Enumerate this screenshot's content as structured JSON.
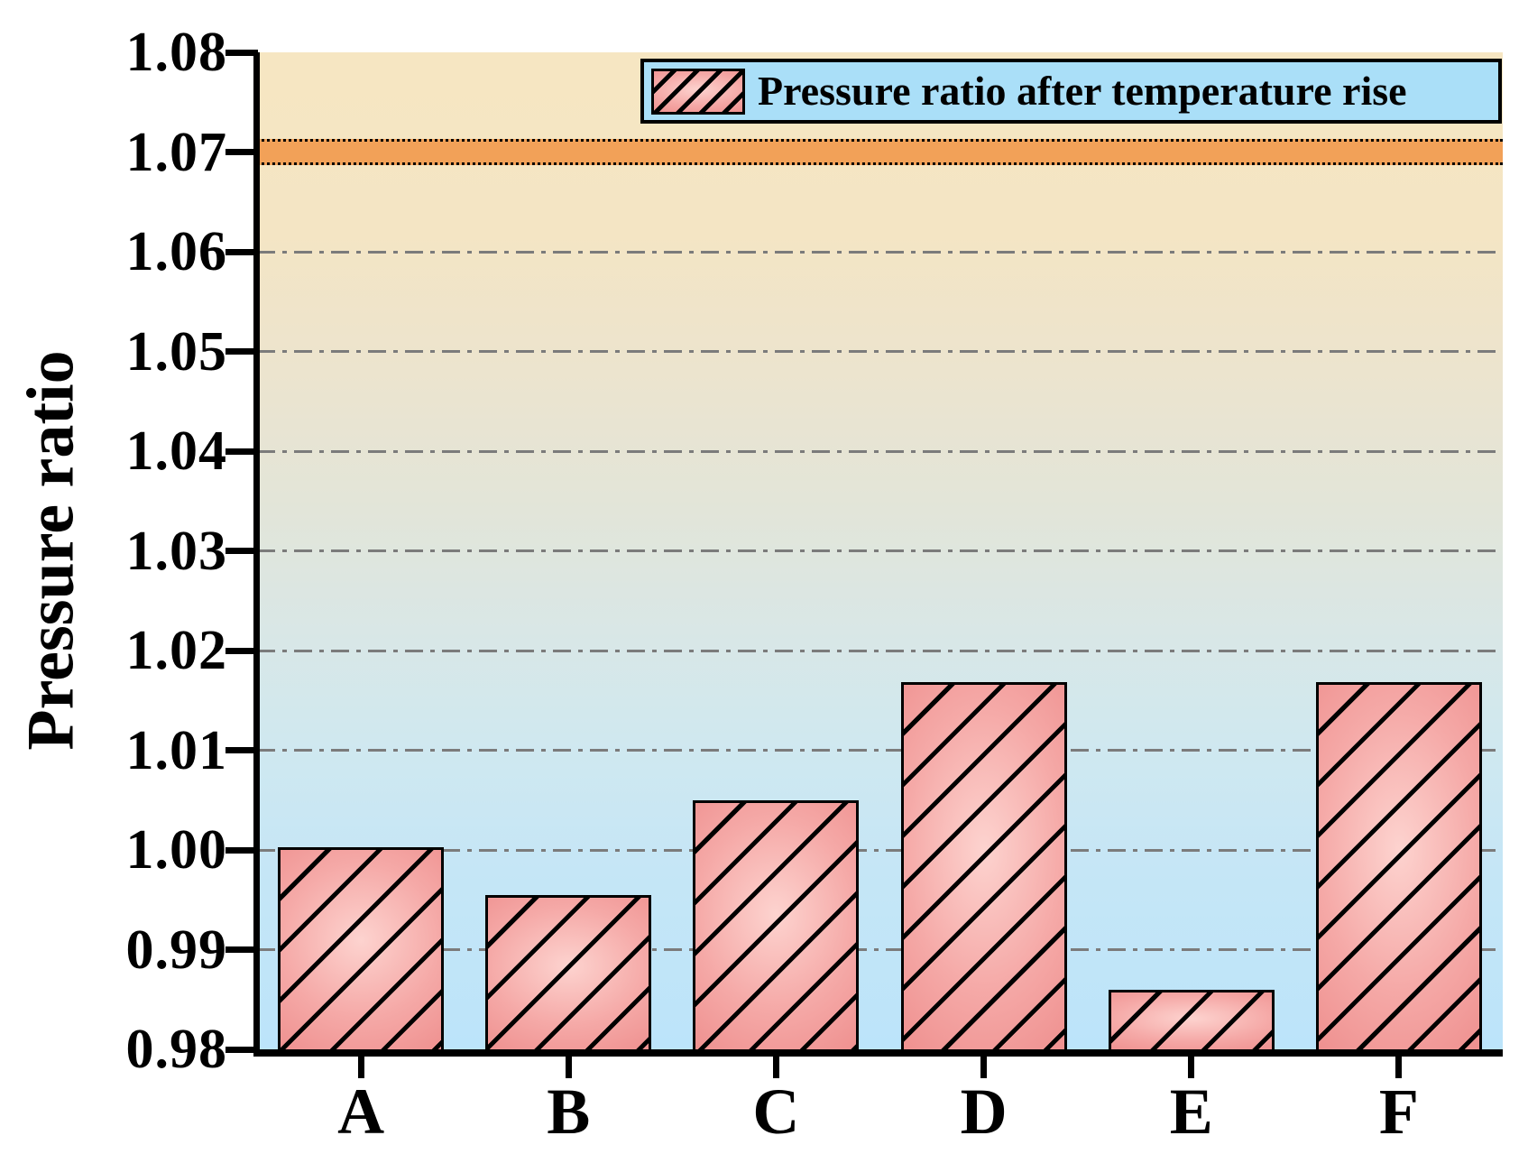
{
  "y_axis": {
    "label": "Pressure ratio",
    "min": 0.98,
    "max": 1.08,
    "tick_step": 0.01,
    "tick_labels": [
      "0.98",
      "0.99",
      "1.00",
      "1.01",
      "1.02",
      "1.03",
      "1.04",
      "1.05",
      "1.06",
      "1.07",
      "1.08"
    ]
  },
  "x_axis": {
    "categories": [
      "A",
      "B",
      "C",
      "D",
      "E",
      "F"
    ]
  },
  "legend": {
    "label": "Pressure ratio after temperature rise",
    "swatch": "hatched-pink-bar-swatch"
  },
  "colors": {
    "bar_edge": "#ee8e8d",
    "bar_mid": "#f5a9a7",
    "bar_center": "#fdd3cf",
    "bar_border": "#000000",
    "hatch": "#000000",
    "reference_band": "#f2a158",
    "legend_background": "#aadff8",
    "gridline": "#7b7b7b",
    "plot_gradient": [
      "#f6e6c2 0%",
      "#f4e5c4 18%",
      "#ece4ce 32%",
      "#e2e5d9 46%",
      "#d9e7e6 58%",
      "#cfe8f0 70%",
      "#c5e6f6 82%",
      "#bce4fa 100%"
    ]
  },
  "chart_data": {
    "type": "bar",
    "title": "",
    "xlabel": "",
    "ylabel": "Pressure ratio",
    "categories": [
      "A",
      "B",
      "C",
      "D",
      "E",
      "F"
    ],
    "values": [
      1.0003,
      0.9955,
      1.005,
      1.0168,
      0.986,
      1.0168
    ],
    "series_name": "Pressure ratio after temperature rise",
    "ylim": [
      0.98,
      1.08
    ],
    "y_ticks": [
      "0.98",
      "0.99",
      "1.00",
      "1.01",
      "1.02",
      "1.03",
      "1.04",
      "1.05",
      "1.06",
      "1.07",
      "1.08"
    ],
    "gridline_values": [
      0.99,
      1.0,
      1.01,
      1.02,
      1.03,
      1.04,
      1.05,
      1.06
    ],
    "grid_style": "gray dash-dot horizontal",
    "reference_band": {
      "from": 1.069,
      "to": 1.071,
      "color": "#f2a158",
      "border": "black dotted"
    },
    "legend_position": "top-right inside plot",
    "bar_style": "pink gradient with black diagonal hatching"
  }
}
